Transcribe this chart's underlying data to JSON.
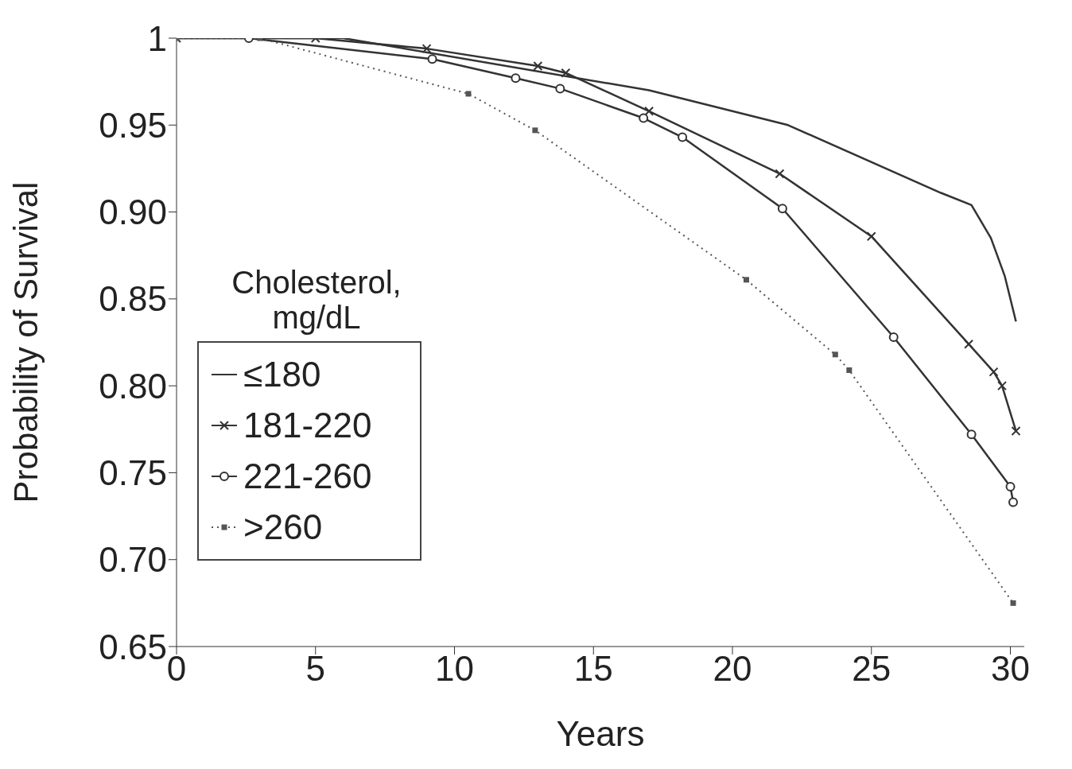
{
  "chart_data": {
    "type": "line",
    "xlabel": "Years",
    "ylabel": "Probability of Survival",
    "legend_title": "Cholesterol, mg/dL",
    "legend": "left",
    "grid": false,
    "xlim": [
      0,
      30.5
    ],
    "xticks": [
      0,
      5,
      10,
      15,
      20,
      25,
      30
    ],
    "ylim": [
      0.65,
      1.0
    ],
    "yticks": [
      {
        "value": 0.65,
        "label": "0.65"
      },
      {
        "value": 0.7,
        "label": "0.70"
      },
      {
        "value": 0.75,
        "label": "0.75"
      },
      {
        "value": 0.8,
        "label": "0.80"
      },
      {
        "value": 0.85,
        "label": "0.85"
      },
      {
        "value": 0.9,
        "label": "0.90"
      },
      {
        "value": 0.95,
        "label": "0.95"
      },
      {
        "value": 1.0,
        "label": "1"
      }
    ],
    "series": [
      {
        "name": "≤180",
        "color": "#333333",
        "marker": "none",
        "line_style": "solid",
        "x": [
          0,
          6,
          17,
          22,
          27.5,
          28.6,
          29.3,
          29.8,
          30.2
        ],
        "values": [
          1,
          1,
          0.97,
          0.95,
          0.911,
          0.904,
          0.885,
          0.863,
          0.837
        ]
      },
      {
        "name": "181-220",
        "color": "#333333",
        "marker": "cross",
        "line_style": "solid",
        "x": [
          0,
          5,
          9,
          13,
          14,
          17,
          21.7,
          25,
          28.5,
          29.4,
          29.7,
          30.2
        ],
        "values": [
          1,
          1,
          0.994,
          0.984,
          0.98,
          0.958,
          0.922,
          0.886,
          0.824,
          0.808,
          0.8,
          0.774
        ]
      },
      {
        "name": "221-260",
        "color": "#333333",
        "marker": "circle",
        "line_style": "solid",
        "x": [
          2.6,
          9.2,
          12.2,
          13.8,
          16.8,
          18.2,
          21.8,
          25.8,
          28.6,
          30.0,
          30.1
        ],
        "values": [
          1,
          0.988,
          0.977,
          0.971,
          0.954,
          0.943,
          0.902,
          0.828,
          0.772,
          0.742,
          0.733
        ]
      },
      {
        "name": ">260",
        "color": "#555555",
        "marker": "square",
        "line_style": "dotted",
        "x": [
          0,
          3,
          10.5,
          12.9,
          20.5,
          23.7,
          24.2,
          30.1
        ],
        "values": [
          1,
          1,
          0.968,
          0.947,
          0.861,
          0.818,
          0.809,
          0.675
        ]
      }
    ]
  }
}
